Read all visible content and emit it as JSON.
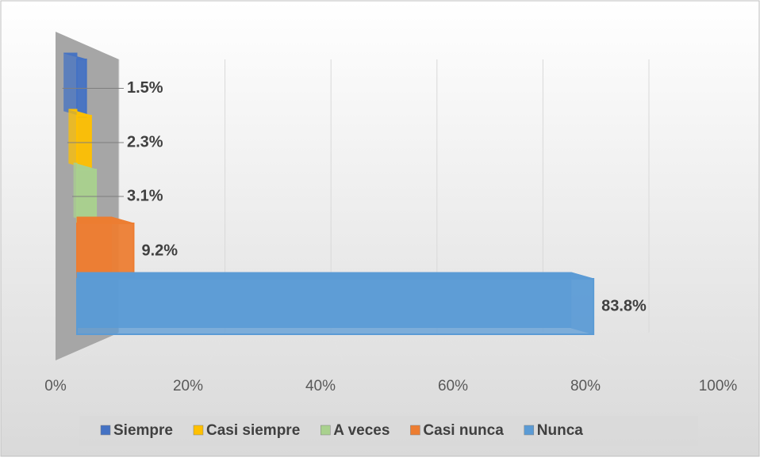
{
  "chart_data": {
    "type": "bar3d",
    "orientation": "horizontal",
    "xlim": [
      0,
      100
    ],
    "xticks": [
      {
        "value": 0,
        "label": "0%"
      },
      {
        "value": 20,
        "label": "20%"
      },
      {
        "value": 40,
        "label": "40%"
      },
      {
        "value": 60,
        "label": "60%"
      },
      {
        "value": 80,
        "label": "80%"
      },
      {
        "value": 100,
        "label": "100%"
      }
    ],
    "grid": true,
    "legend": "bottom",
    "series": [
      {
        "name": "Siempre",
        "color": "#4472c4",
        "values": [
          1.5
        ],
        "value_labels": [
          "1.5%"
        ]
      },
      {
        "name": "Casi siempre",
        "color": "#ffc000",
        "values": [
          2.3
        ],
        "value_labels": [
          "2.3%"
        ]
      },
      {
        "name": "A veces",
        "color": "#a9d18e",
        "values": [
          3.1
        ],
        "value_labels": [
          "3.1%"
        ]
      },
      {
        "name": "Casi nunca",
        "color": "#ed7d31",
        "values": [
          9.2
        ],
        "value_labels": [
          "9.2%"
        ]
      },
      {
        "name": "Nunca",
        "color": "#5b9bd5",
        "values": [
          83.8
        ],
        "value_labels": [
          "83.8%"
        ]
      }
    ]
  }
}
